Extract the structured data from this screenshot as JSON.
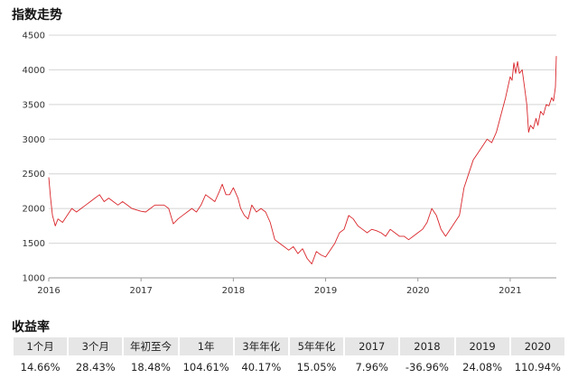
{
  "chart_title": "指数走势",
  "returns_title": "收益率",
  "returns": {
    "headers": [
      "1个月",
      "3个月",
      "年初至今",
      "1年",
      "3年年化",
      "5年年化",
      "2017",
      "2018",
      "2019",
      "2020"
    ],
    "values": [
      "14.66%",
      "28.43%",
      "18.48%",
      "104.61%",
      "40.17%",
      "15.05%",
      "7.96%",
      "-36.96%",
      "24.08%",
      "110.94%"
    ]
  },
  "chart_data": {
    "type": "line",
    "title": "指数走势",
    "xlabel": "",
    "ylabel": "",
    "xlim": [
      2016.0,
      2021.5
    ],
    "ylim": [
      1000,
      4500
    ],
    "x_ticks": [
      "2016",
      "2017",
      "2018",
      "2019",
      "2020",
      "2021"
    ],
    "y_ticks": [
      1000,
      1500,
      2000,
      2500,
      3000,
      3500,
      4000,
      4500
    ],
    "grid": "horizontal",
    "line_color": "#d9262b",
    "series": [
      {
        "x": [
          2016.0,
          2016.02,
          2016.04,
          2016.07,
          2016.1,
          2016.15,
          2016.2,
          2016.25,
          2016.3,
          2016.35,
          2016.4,
          2016.45,
          2016.5,
          2016.55,
          2016.6,
          2016.65,
          2016.7,
          2016.75,
          2016.8,
          2016.85,
          2016.9,
          2016.95,
          2017.0,
          2017.05,
          2017.1,
          2017.15,
          2017.2,
          2017.25,
          2017.3,
          2017.35,
          2017.4,
          2017.45,
          2017.5,
          2017.55,
          2017.6,
          2017.65,
          2017.7,
          2017.75,
          2017.8,
          2017.85,
          2017.88,
          2017.92,
          2017.96,
          2018.0,
          2018.05,
          2018.08,
          2018.12,
          2018.16,
          2018.2,
          2018.25,
          2018.3,
          2018.35,
          2018.4,
          2018.45,
          2018.5,
          2018.55,
          2018.6,
          2018.65,
          2018.7,
          2018.75,
          2018.8,
          2018.85,
          2018.9,
          2018.95,
          2019.0,
          2019.05,
          2019.1,
          2019.15,
          2019.2,
          2019.25,
          2019.3,
          2019.35,
          2019.4,
          2019.45,
          2019.5,
          2019.55,
          2019.6,
          2019.65,
          2019.7,
          2019.75,
          2019.8,
          2019.85,
          2019.9,
          2019.95,
          2020.0,
          2020.05,
          2020.1,
          2020.15,
          2020.2,
          2020.25,
          2020.3,
          2020.35,
          2020.4,
          2020.45,
          2020.5,
          2020.55,
          2020.6,
          2020.65,
          2020.7,
          2020.75,
          2020.8,
          2020.85,
          2020.9,
          2020.95,
          2021.0,
          2021.02,
          2021.04,
          2021.06,
          2021.08,
          2021.1,
          2021.13,
          2021.16,
          2021.18,
          2021.2,
          2021.22,
          2021.25,
          2021.28,
          2021.3,
          2021.33,
          2021.36,
          2021.39,
          2021.42,
          2021.45,
          2021.47,
          2021.49,
          2021.5
        ],
        "values": [
          2450,
          2150,
          1900,
          1750,
          1850,
          1800,
          1900,
          2000,
          1950,
          2000,
          2050,
          2100,
          2150,
          2200,
          2100,
          2150,
          2100,
          2050,
          2100,
          2050,
          2000,
          1980,
          1960,
          1950,
          2000,
          2050,
          2050,
          2050,
          2000,
          1780,
          1850,
          1900,
          1950,
          2000,
          1950,
          2050,
          2200,
          2150,
          2100,
          2250,
          2350,
          2200,
          2200,
          2300,
          2150,
          2000,
          1900,
          1850,
          2050,
          1950,
          2000,
          1950,
          1800,
          1550,
          1500,
          1450,
          1400,
          1450,
          1350,
          1420,
          1280,
          1200,
          1380,
          1330,
          1300,
          1400,
          1500,
          1650,
          1700,
          1900,
          1850,
          1750,
          1700,
          1650,
          1700,
          1680,
          1650,
          1600,
          1700,
          1650,
          1600,
          1600,
          1550,
          1600,
          1650,
          1700,
          1800,
          2000,
          1900,
          1700,
          1600,
          1700,
          1800,
          1900,
          2300,
          2500,
          2700,
          2800,
          2900,
          3000,
          2950,
          3100,
          3350,
          3600,
          3900,
          3850,
          4100,
          3950,
          4120,
          3950,
          4000,
          3700,
          3500,
          3100,
          3200,
          3150,
          3300,
          3200,
          3400,
          3350,
          3500,
          3480,
          3600,
          3550,
          3750,
          4200
        ]
      }
    ]
  }
}
